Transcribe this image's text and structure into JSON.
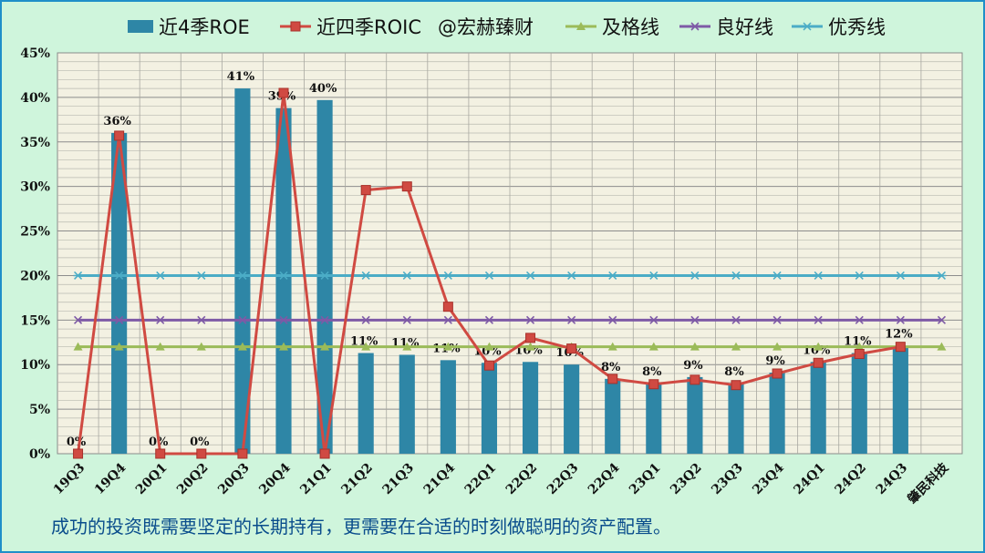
{
  "chart_data": {
    "type": "bar",
    "categories": [
      "19Q3",
      "19Q4",
      "20Q1",
      "20Q2",
      "20Q3",
      "20Q4",
      "21Q1",
      "21Q2",
      "21Q3",
      "21Q4",
      "22Q1",
      "22Q2",
      "22Q3",
      "22Q4",
      "23Q1",
      "23Q2",
      "23Q3",
      "23Q4",
      "24Q1",
      "24Q2",
      "24Q3",
      "肇民科技"
    ],
    "ylim": [
      0,
      45
    ],
    "yticks": [
      "0%",
      "5%",
      "10%",
      "15%",
      "20%",
      "25%",
      "30%",
      "35%",
      "40%",
      "45%"
    ],
    "grid": true,
    "legend_position": "top",
    "series": [
      {
        "name": "近4季ROE",
        "kind": "bar",
        "color": "#2e86a6",
        "values": [
          0,
          36,
          0,
          0,
          41,
          39,
          40,
          11,
          11,
          11,
          10,
          10,
          10,
          8,
          8,
          9,
          8,
          9,
          10,
          11,
          12,
          null
        ],
        "bar_values": [
          0,
          36,
          0,
          0,
          41,
          38.8,
          39.7,
          11.3,
          11.1,
          10.5,
          10.2,
          10.3,
          10,
          8.4,
          7.9,
          8.6,
          7.9,
          9.1,
          10.3,
          11.3,
          12.1,
          null
        ],
        "labels": [
          "0%",
          "36%",
          "0%",
          "0%",
          "41%",
          "39%",
          "40%",
          "11%",
          "11%",
          "11%",
          "10%",
          "10%",
          "10%",
          "8%",
          "8%",
          "9%",
          "8%",
          "9%",
          "10%",
          "11%",
          "12%",
          ""
        ]
      },
      {
        "name": "近四季ROIC",
        "kind": "line",
        "color": "#d04a42",
        "marker": "square",
        "values": [
          0,
          35.7,
          0,
          0,
          0,
          40.5,
          0,
          29.6,
          30,
          16.5,
          9.9,
          13,
          11.8,
          8.4,
          7.8,
          8.3,
          7.7,
          9,
          10.2,
          11.2,
          12,
          null
        ]
      },
      {
        "name": "及格线",
        "kind": "line",
        "color": "#9bbb59",
        "marker": "triangle",
        "values": [
          12,
          12,
          12,
          12,
          12,
          12,
          12,
          12,
          12,
          12,
          12,
          12,
          12,
          12,
          12,
          12,
          12,
          12,
          12,
          12,
          12,
          12
        ]
      },
      {
        "name": "良好线",
        "kind": "line",
        "color": "#7e5aa6",
        "marker": "x",
        "values": [
          15,
          15,
          15,
          15,
          15,
          15,
          15,
          15,
          15,
          15,
          15,
          15,
          15,
          15,
          15,
          15,
          15,
          15,
          15,
          15,
          15,
          15
        ]
      },
      {
        "name": "优秀线",
        "kind": "line",
        "color": "#4bacc6",
        "marker": "star",
        "values": [
          20,
          20,
          20,
          20,
          20,
          20,
          20,
          20,
          20,
          20,
          20,
          20,
          20,
          20,
          20,
          20,
          20,
          20,
          20,
          20,
          20,
          20
        ]
      }
    ],
    "watermark": "@宏赫臻财"
  },
  "footer_text": "成功的投资既需要坚定的长期持有，更需要在合适的时刻做聪明的资产配置。"
}
